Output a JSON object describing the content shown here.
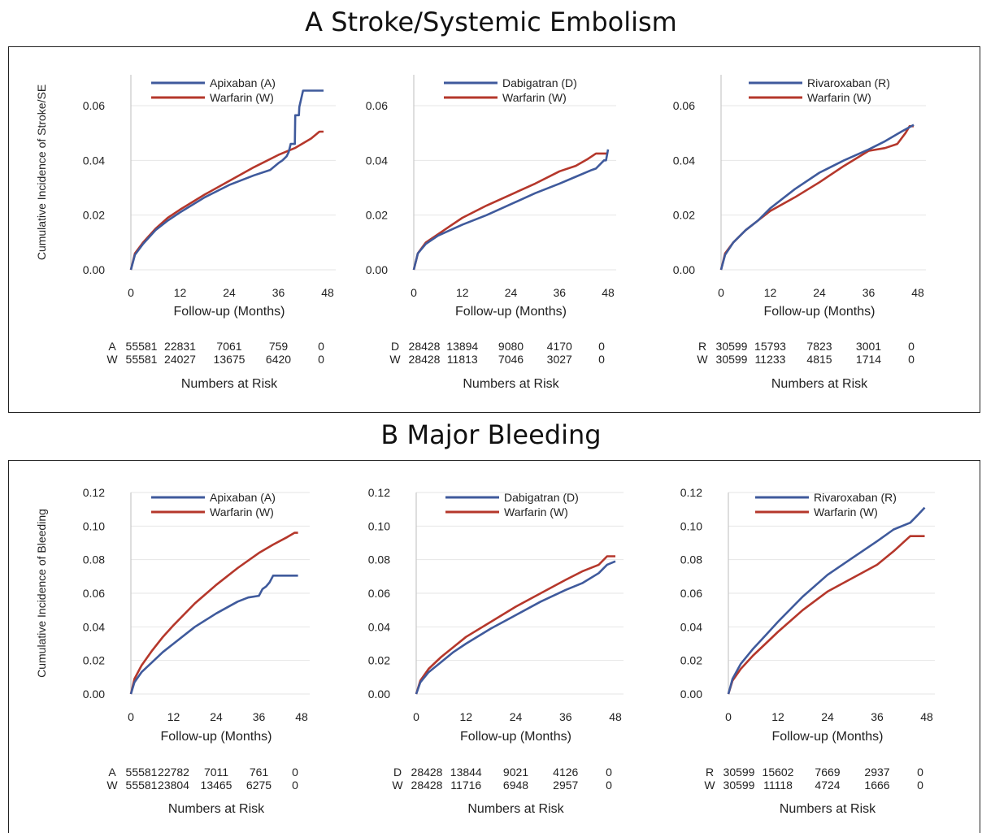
{
  "sections": [
    {
      "title": "A  Stroke/Systemic Embolism",
      "ylabel": "Cumulative Incidence of Stroke/SE"
    },
    {
      "title": "B   Major Bleeding",
      "ylabel": "Cumulative Incidence of Bleeding"
    }
  ],
  "colors": {
    "doac": "#3f5a9c",
    "warfarin": "#b5372b",
    "grid": "#e6e6e6",
    "axis": "#c8c8c8"
  },
  "chart_data": [
    {
      "type": "line",
      "section": "A",
      "xlabel": "Follow-up (Months)",
      "ylabel": "Cumulative Incidence of Stroke/SE",
      "xticks": [
        0,
        12,
        24,
        36,
        48
      ],
      "yticks": [
        "0.00",
        "0.02",
        "0.04",
        "0.06"
      ],
      "xlim": [
        0,
        48
      ],
      "ylim": [
        0,
        0.065
      ],
      "series": [
        {
          "name": "Apixaban (A)",
          "color": "#3f5a9c",
          "x": [
            0,
            1,
            3,
            6,
            9,
            12,
            18,
            24,
            30,
            34,
            36,
            37,
            38,
            38.5,
            39,
            40,
            40.1,
            41,
            41.1,
            42,
            47
          ],
          "y": [
            0,
            0.0055,
            0.0095,
            0.0145,
            0.018,
            0.021,
            0.0265,
            0.031,
            0.0345,
            0.0365,
            0.039,
            0.04,
            0.0415,
            0.043,
            0.046,
            0.046,
            0.0565,
            0.0565,
            0.0595,
            0.0655,
            0.0655
          ]
        },
        {
          "name": "Warfarin (W)",
          "color": "#b5372b",
          "x": [
            0,
            1,
            3,
            6,
            9,
            12,
            18,
            24,
            30,
            36,
            40,
            44,
            46,
            47
          ],
          "y": [
            0,
            0.006,
            0.01,
            0.015,
            0.019,
            0.022,
            0.0275,
            0.0325,
            0.0375,
            0.042,
            0.0445,
            0.048,
            0.0505,
            0.0505
          ]
        }
      ],
      "risk": {
        "title": "Numbers at Risk",
        "rows": [
          {
            "label": "A",
            "values": [
              "55581",
              "22831",
              "7061",
              "759",
              "0"
            ]
          },
          {
            "label": "W",
            "values": [
              "55581",
              "24027",
              "13675",
              "6420",
              "0"
            ]
          }
        ]
      }
    },
    {
      "type": "line",
      "section": "A",
      "xlabel": "Follow-up (Months)",
      "ylabel": "",
      "xticks": [
        0,
        12,
        24,
        36,
        48
      ],
      "yticks": [
        "0.00",
        "0.02",
        "0.04",
        "0.06"
      ],
      "xlim": [
        0,
        48
      ],
      "ylim": [
        0,
        0.065
      ],
      "series": [
        {
          "name": "Dabigatran (D)",
          "color": "#3f5a9c",
          "x": [
            0,
            1,
            3,
            6,
            9,
            12,
            18,
            24,
            30,
            36,
            40,
            44,
            45,
            47,
            47.5,
            48
          ],
          "y": [
            0,
            0.006,
            0.0095,
            0.0125,
            0.0145,
            0.0165,
            0.02,
            0.024,
            0.028,
            0.0315,
            0.034,
            0.0365,
            0.037,
            0.04,
            0.04,
            0.044
          ]
        },
        {
          "name": "Warfarin (W)",
          "color": "#b5372b",
          "x": [
            0,
            1,
            3,
            6,
            9,
            12,
            18,
            24,
            30,
            36,
            40,
            43,
            45,
            48
          ],
          "y": [
            0,
            0.006,
            0.01,
            0.013,
            0.016,
            0.019,
            0.0235,
            0.0275,
            0.0315,
            0.036,
            0.038,
            0.0405,
            0.0425,
            0.0425
          ]
        }
      ],
      "risk": {
        "title": "Numbers at Risk",
        "rows": [
          {
            "label": "D",
            "values": [
              "28428",
              "13894",
              "9080",
              "4170",
              "0"
            ]
          },
          {
            "label": "W",
            "values": [
              "28428",
              "11813",
              "7046",
              "3027",
              "0"
            ]
          }
        ]
      }
    },
    {
      "type": "line",
      "section": "A",
      "xlabel": "Follow-up (Months)",
      "ylabel": "",
      "xticks": [
        0,
        12,
        24,
        36,
        48
      ],
      "yticks": [
        "0.00",
        "0.02",
        "0.04",
        "0.06"
      ],
      "xlim": [
        0,
        48
      ],
      "ylim": [
        0,
        0.065
      ],
      "series": [
        {
          "name": "Rivaroxaban (R)",
          "color": "#3f5a9c",
          "x": [
            0,
            1,
            3,
            6,
            9,
            12,
            18,
            24,
            30,
            36,
            40,
            44,
            47
          ],
          "y": [
            0,
            0.0055,
            0.01,
            0.0145,
            0.018,
            0.0225,
            0.0295,
            0.0355,
            0.04,
            0.044,
            0.047,
            0.0505,
            0.053
          ]
        },
        {
          "name": "Warfarin (W)",
          "color": "#b5372b",
          "x": [
            0,
            1,
            3,
            6,
            9,
            12,
            18,
            24,
            30,
            36,
            40,
            43,
            45,
            46,
            47
          ],
          "y": [
            0,
            0.006,
            0.01,
            0.0145,
            0.018,
            0.0215,
            0.0265,
            0.032,
            0.038,
            0.0435,
            0.0445,
            0.046,
            0.05,
            0.0525,
            0.0525
          ]
        }
      ],
      "risk": {
        "title": "Numbers at Risk",
        "rows": [
          {
            "label": "R",
            "values": [
              "30599",
              "15793",
              "7823",
              "3001",
              "0"
            ]
          },
          {
            "label": "W",
            "values": [
              "30599",
              "11233",
              "4815",
              "1714",
              "0"
            ]
          }
        ]
      }
    },
    {
      "type": "line",
      "section": "B",
      "xlabel": "Follow-up (Months)",
      "ylabel": "Cumulative Incidence of Bleeding",
      "xticks": [
        0,
        12,
        24,
        36,
        48
      ],
      "yticks": [
        "0.00",
        "0.02",
        "0.04",
        "0.06",
        "0.08",
        "0.10",
        "0.12"
      ],
      "xlim": [
        0,
        48
      ],
      "ylim": [
        0,
        0.12
      ],
      "series": [
        {
          "name": "Apixaban (A)",
          "color": "#3f5a9c",
          "x": [
            0,
            1,
            3,
            6,
            9,
            12,
            18,
            24,
            30,
            33,
            36,
            37,
            38,
            39,
            40,
            47
          ],
          "y": [
            0,
            0.007,
            0.013,
            0.019,
            0.025,
            0.03,
            0.04,
            0.048,
            0.055,
            0.0575,
            0.0585,
            0.0625,
            0.064,
            0.0665,
            0.0705,
            0.0705
          ]
        },
        {
          "name": "Warfarin (W)",
          "color": "#b5372b",
          "x": [
            0,
            1,
            3,
            6,
            9,
            12,
            18,
            24,
            30,
            36,
            40,
            44,
            46,
            47
          ],
          "y": [
            0,
            0.009,
            0.017,
            0.026,
            0.034,
            0.041,
            0.054,
            0.065,
            0.075,
            0.084,
            0.089,
            0.0935,
            0.096,
            0.096
          ]
        }
      ],
      "risk": {
        "title": "Numbers at Risk",
        "rows": [
          {
            "label": "A",
            "values": [
              "55581",
              "22782",
              "7011",
              "761",
              "0"
            ]
          },
          {
            "label": "W",
            "values": [
              "55581",
              "23804",
              "13465",
              "6275",
              "0"
            ]
          }
        ]
      }
    },
    {
      "type": "line",
      "section": "B",
      "xlabel": "Follow-up (Months)",
      "ylabel": "",
      "xticks": [
        0,
        12,
        24,
        36,
        48
      ],
      "yticks": [
        "0.00",
        "0.02",
        "0.04",
        "0.06",
        "0.08",
        "0.10",
        "0.12"
      ],
      "xlim": [
        0,
        48
      ],
      "ylim": [
        0,
        0.12
      ],
      "series": [
        {
          "name": "Dabigatran (D)",
          "color": "#3f5a9c",
          "x": [
            0,
            1,
            3,
            6,
            9,
            12,
            18,
            24,
            30,
            36,
            40,
            44,
            46,
            48
          ],
          "y": [
            0,
            0.007,
            0.013,
            0.019,
            0.025,
            0.03,
            0.039,
            0.047,
            0.055,
            0.062,
            0.066,
            0.072,
            0.077,
            0.079
          ]
        },
        {
          "name": "Warfarin (W)",
          "color": "#b5372b",
          "x": [
            0,
            1,
            3,
            6,
            9,
            12,
            18,
            24,
            30,
            36,
            40,
            44,
            46,
            48
          ],
          "y": [
            0,
            0.008,
            0.015,
            0.022,
            0.028,
            0.034,
            0.043,
            0.052,
            0.06,
            0.068,
            0.073,
            0.077,
            0.082,
            0.082
          ]
        }
      ],
      "risk": {
        "title": "Numbers at Risk",
        "rows": [
          {
            "label": "D",
            "values": [
              "28428",
              "13844",
              "9021",
              "4126",
              "0"
            ]
          },
          {
            "label": "W",
            "values": [
              "28428",
              "11716",
              "6948",
              "2957",
              "0"
            ]
          }
        ]
      }
    },
    {
      "type": "line",
      "section": "B",
      "xlabel": "Follow-up (Months)",
      "ylabel": "",
      "xticks": [
        0,
        12,
        24,
        36,
        48
      ],
      "yticks": [
        "0.00",
        "0.02",
        "0.04",
        "0.06",
        "0.08",
        "0.10",
        "0.12"
      ],
      "xlim": [
        0,
        48
      ],
      "ylim": [
        0,
        0.12
      ],
      "series": [
        {
          "name": "Rivaroxaban (R)",
          "color": "#3f5a9c",
          "x": [
            0,
            1,
            3,
            6,
            9,
            12,
            18,
            24,
            30,
            36,
            40,
            44,
            46,
            47.5
          ],
          "y": [
            0,
            0.009,
            0.018,
            0.027,
            0.035,
            0.043,
            0.058,
            0.071,
            0.081,
            0.091,
            0.098,
            0.102,
            0.107,
            0.111
          ]
        },
        {
          "name": "Warfarin (W)",
          "color": "#b5372b",
          "x": [
            0,
            1,
            3,
            6,
            9,
            12,
            18,
            24,
            30,
            36,
            40,
            44,
            47.5
          ],
          "y": [
            0,
            0.008,
            0.015,
            0.023,
            0.03,
            0.037,
            0.05,
            0.061,
            0.069,
            0.077,
            0.085,
            0.094,
            0.094
          ]
        }
      ],
      "risk": {
        "title": "Numbers at Risk",
        "rows": [
          {
            "label": "R",
            "values": [
              "30599",
              "15602",
              "7669",
              "2937",
              "0"
            ]
          },
          {
            "label": "W",
            "values": [
              "30599",
              "11118",
              "4724",
              "1666",
              "0"
            ]
          }
        ]
      }
    }
  ]
}
